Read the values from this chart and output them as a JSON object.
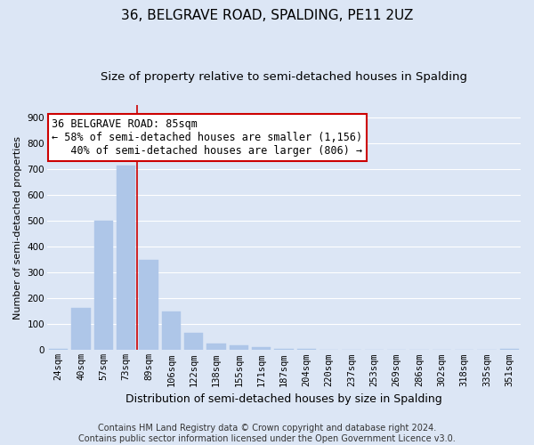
{
  "title": "36, BELGRAVE ROAD, SPALDING, PE11 2UZ",
  "subtitle": "Size of property relative to semi-detached houses in Spalding",
  "xlabel": "Distribution of semi-detached houses by size in Spalding",
  "ylabel": "Number of semi-detached properties",
  "bar_values": [
    5,
    163,
    500,
    715,
    350,
    150,
    68,
    25,
    18,
    12,
    5,
    5,
    3,
    3,
    2,
    2,
    2,
    2,
    2,
    2,
    5
  ],
  "categories": [
    "24sqm",
    "40sqm",
    "57sqm",
    "73sqm",
    "89sqm",
    "106sqm",
    "122sqm",
    "138sqm",
    "155sqm",
    "171sqm",
    "187sqm",
    "204sqm",
    "220sqm",
    "237sqm",
    "253sqm",
    "269sqm",
    "286sqm",
    "302sqm",
    "318sqm",
    "335sqm",
    "351sqm"
  ],
  "bar_color": "#aec6e8",
  "bar_edgecolor": "#aec6e8",
  "vline_x_index": 3,
  "vline_color": "#cc0000",
  "annotation_line1": "36 BELGRAVE ROAD: 85sqm",
  "annotation_line2": "← 58% of semi-detached houses are smaller (1,156)",
  "annotation_line3": "   40% of semi-detached houses are larger (806) →",
  "annotation_box_color": "#ffffff",
  "annotation_box_edgecolor": "#cc0000",
  "ylim": [
    0,
    950
  ],
  "yticks": [
    0,
    100,
    200,
    300,
    400,
    500,
    600,
    700,
    800,
    900
  ],
  "plot_bg_color": "#dce6f5",
  "fig_bg_color": "#dce6f5",
  "grid_color": "#ffffff",
  "footer": "Contains HM Land Registry data © Crown copyright and database right 2024.\nContains public sector information licensed under the Open Government Licence v3.0.",
  "title_fontsize": 11,
  "subtitle_fontsize": 9.5,
  "xlabel_fontsize": 9,
  "ylabel_fontsize": 8,
  "tick_fontsize": 7.5,
  "annotation_fontsize": 8.5,
  "footer_fontsize": 7
}
